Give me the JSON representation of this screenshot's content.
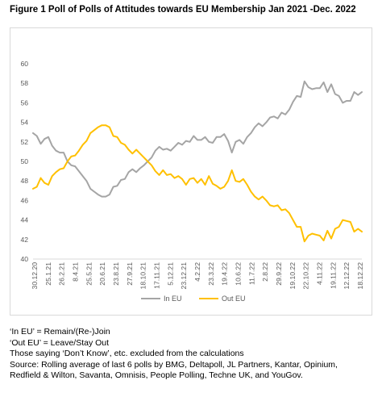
{
  "figure_title": "Figure 1 Poll of Polls of Attitudes towards EU Membership Jan 2021 -Dec. 2022",
  "notes": [
    "‘In EU’ = Remain/(Re-)Join",
    "‘Out EU’ = Leave/Stay Out",
    "Those saying ‘Don’t Know’, etc. excluded from the calculations",
    "Source: Rolling average of last 6 polls by BMG, Deltapoll, JL Partners, Kantar, Opinium,",
    "Redfield & Wilton, Savanta, Omnisis, People Polling, Techne UK, and YouGov."
  ],
  "chart_data": {
    "type": "line",
    "title": "",
    "xlabel": "",
    "ylabel": "",
    "ylim": [
      40,
      60
    ],
    "yticks": [
      40,
      42,
      44,
      46,
      48,
      50,
      52,
      54,
      56,
      58,
      60
    ],
    "grid": false,
    "legend_position": "bottom",
    "x_tick_labels": [
      "30.12.20",
      "25.1.21",
      "26.2.21",
      "8.4.21",
      "25.5.21",
      "20.6.21",
      "23.8.21",
      "27.9.21",
      "18.10.21",
      "17.11.21",
      "5.12.21",
      "23.12.21",
      "4.2.22",
      "23.3.22",
      "19.4.22",
      "10.6.22",
      "11.7.22",
      "2.8.22",
      "29.9.22",
      "19.10.22",
      "22.10.22",
      "4.11.22",
      "19.11.22",
      "12.12.22",
      "18.12.22"
    ],
    "series": [
      {
        "name": "In EU",
        "color": "#a5a5a5",
        "values": [
          52.9,
          52.6,
          51.8,
          52.3,
          52.5,
          51.6,
          51.1,
          50.9,
          50.9,
          50.0,
          49.6,
          49.5,
          49.0,
          48.5,
          48.0,
          47.2,
          46.9,
          46.6,
          46.4,
          46.4,
          46.6,
          47.4,
          47.5,
          48.1,
          48.2,
          48.9,
          49.2,
          48.9,
          49.3,
          49.6,
          50.0,
          50.4,
          51.1,
          51.5,
          51.2,
          51.3,
          51.1,
          51.5,
          51.9,
          51.7,
          52.1,
          52.0,
          52.6,
          52.2,
          52.2,
          52.5,
          52.0,
          51.9,
          52.5,
          52.5,
          52.8,
          52.1,
          50.9,
          52.0,
          52.2,
          51.8,
          52.5,
          52.9,
          53.5,
          53.9,
          53.6,
          54.0,
          54.5,
          54.6,
          54.4,
          55.0,
          54.8,
          55.3,
          56.1,
          56.7,
          56.6,
          58.2,
          57.6,
          57.4,
          57.5,
          57.5,
          58.1,
          57.1,
          57.9,
          56.9,
          56.7,
          56.0,
          56.2,
          56.2,
          57.1,
          56.8,
          57.1
        ]
      },
      {
        "name": "Out EU",
        "color": "#ffc000",
        "values": [
          47.2,
          47.4,
          48.3,
          47.8,
          47.6,
          48.5,
          48.9,
          49.2,
          49.3,
          50.0,
          50.5,
          50.6,
          51.1,
          51.7,
          52.1,
          52.9,
          53.2,
          53.5,
          53.7,
          53.7,
          53.5,
          52.6,
          52.5,
          51.9,
          51.7,
          51.2,
          50.8,
          51.2,
          50.8,
          50.4,
          50.0,
          49.6,
          49.0,
          48.6,
          49.1,
          48.6,
          48.7,
          48.3,
          48.5,
          48.2,
          47.6,
          48.2,
          48.3,
          47.8,
          48.2,
          47.6,
          48.5,
          47.7,
          47.5,
          47.2,
          47.4,
          48.0,
          49.1,
          48.0,
          47.9,
          48.2,
          47.6,
          46.9,
          46.4,
          46.1,
          46.4,
          46.0,
          45.5,
          45.4,
          45.5,
          45.0,
          45.1,
          44.7,
          44.0,
          43.3,
          43.3,
          41.8,
          42.4,
          42.6,
          42.5,
          42.4,
          41.9,
          42.9,
          42.1,
          43.1,
          43.3,
          44.0,
          43.9,
          43.8,
          42.8,
          43.1,
          42.8
        ]
      }
    ]
  }
}
